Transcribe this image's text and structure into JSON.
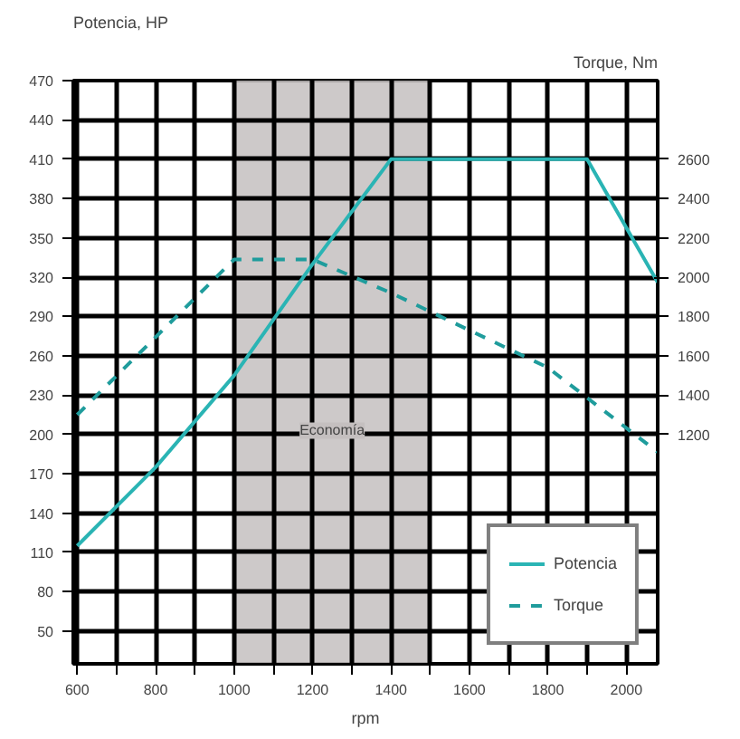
{
  "chart_data": {
    "type": "line",
    "xlabel": "rpm",
    "ylabel": "Potencia, HP",
    "y2label": "Torque, Nm",
    "x": [
      600,
      800,
      1000,
      1200,
      1400,
      1800,
      1900,
      2080
    ],
    "series": [
      {
        "name": "Potencia",
        "color": "#2ab4b4",
        "values": [
          115,
          175,
          245,
          330,
          410,
          410,
          410,
          316
        ]
      },
      {
        "name": "Torque",
        "color": "#1f9c9c",
        "axis": "y2",
        "x": [
          600,
          1000,
          1200,
          1400,
          1800,
          2080
        ],
        "values": [
          1300,
          2090,
          2090,
          1920,
          1540,
          1110
        ],
        "line_style": "dashed"
      }
    ],
    "xlim": [
      590,
      2080
    ],
    "ylim": [
      25,
      470
    ],
    "y2lim": [
      33,
      3000
    ],
    "xticks": [
      600,
      {
        "value": 700,
        "label": null
      },
      800,
      {
        "value": 900,
        "label": null
      },
      1000,
      {
        "value": 1100,
        "label": null
      },
      1200,
      {
        "value": 1300,
        "label": null
      },
      1400,
      {
        "value": 1500,
        "label": null
      },
      1600,
      {
        "value": 1700,
        "label": null
      },
      1800,
      {
        "value": 1900,
        "label": null
      },
      2000
    ],
    "yticks": [
      50,
      80,
      110,
      140,
      170,
      200,
      230,
      260,
      290,
      320,
      350,
      380,
      410,
      440,
      470
    ],
    "y2ticks": [
      1200,
      1400,
      1600,
      1800,
      2000,
      2200,
      2400,
      2600
    ],
    "bands": [
      {
        "axis": "x",
        "from": 1000,
        "to": 1500,
        "label": "Economía",
        "color": "#c4bfbf"
      }
    ],
    "grid": true,
    "legend": "bottom right",
    "marker": "none"
  }
}
